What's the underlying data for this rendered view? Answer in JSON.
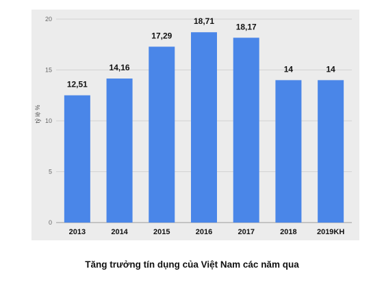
{
  "chart_data": {
    "type": "bar",
    "categories": [
      "2013",
      "2014",
      "2015",
      "2016",
      "2017",
      "2018",
      "2019KH"
    ],
    "values": [
      12.51,
      14.16,
      17.29,
      18.71,
      18.17,
      14,
      14
    ],
    "data_labels": [
      "12,51",
      "14,16",
      "17,29",
      "18,71",
      "18,17",
      "14",
      "14"
    ],
    "ylabel": "tỷ lệ %",
    "ylim": [
      0,
      20
    ],
    "yticks": [
      "0",
      "5",
      "10",
      "15",
      "20"
    ],
    "grid": true,
    "bar_color": "#4a86e8",
    "background_color": "#ececec"
  },
  "caption": "Tăng trưởng tín dụng của Việt Nam các năm qua"
}
